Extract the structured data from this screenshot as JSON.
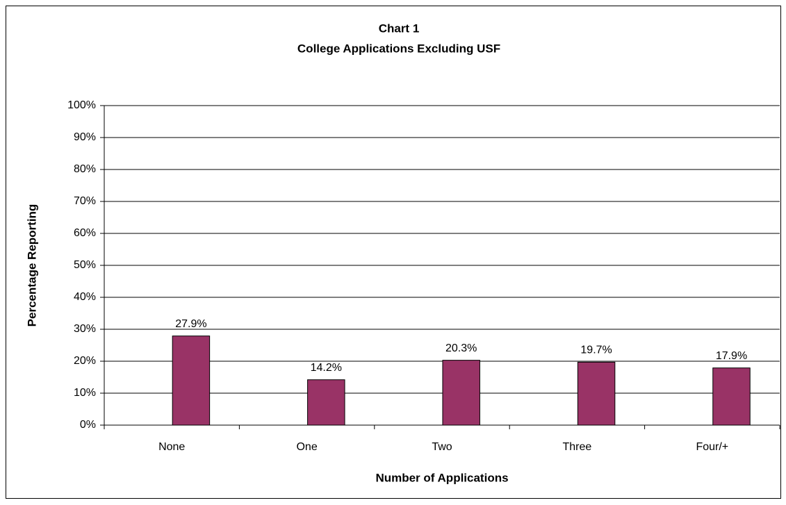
{
  "chart_data": {
    "type": "bar",
    "title": [
      "Chart 1",
      "College Applications Excluding USF"
    ],
    "x_label": "Number of Applications",
    "y_label": "Percentage Reporting",
    "categories": [
      "None",
      "One",
      "Two",
      "Three",
      "Four/+"
    ],
    "values": [
      27.9,
      14.2,
      20.3,
      19.7,
      17.9
    ],
    "value_labels": [
      "27.9%",
      "14.2%",
      "20.3%",
      "19.7%",
      "17.9%"
    ],
    "color": "#993366",
    "ylim": [
      0,
      100
    ],
    "yticks": [
      {
        "value": 0,
        "label": "0%"
      },
      {
        "value": 10,
        "label": "10%"
      },
      {
        "value": 20,
        "label": "20%"
      },
      {
        "value": 30,
        "label": "30%"
      },
      {
        "value": 40,
        "label": "40%"
      },
      {
        "value": 50,
        "label": "50%"
      },
      {
        "value": 60,
        "label": "60%"
      },
      {
        "value": 70,
        "label": "70%"
      },
      {
        "value": 80,
        "label": "80%"
      },
      {
        "value": 90,
        "label": "90%"
      },
      {
        "value": 100,
        "label": "100%"
      }
    ],
    "grid": true
  }
}
